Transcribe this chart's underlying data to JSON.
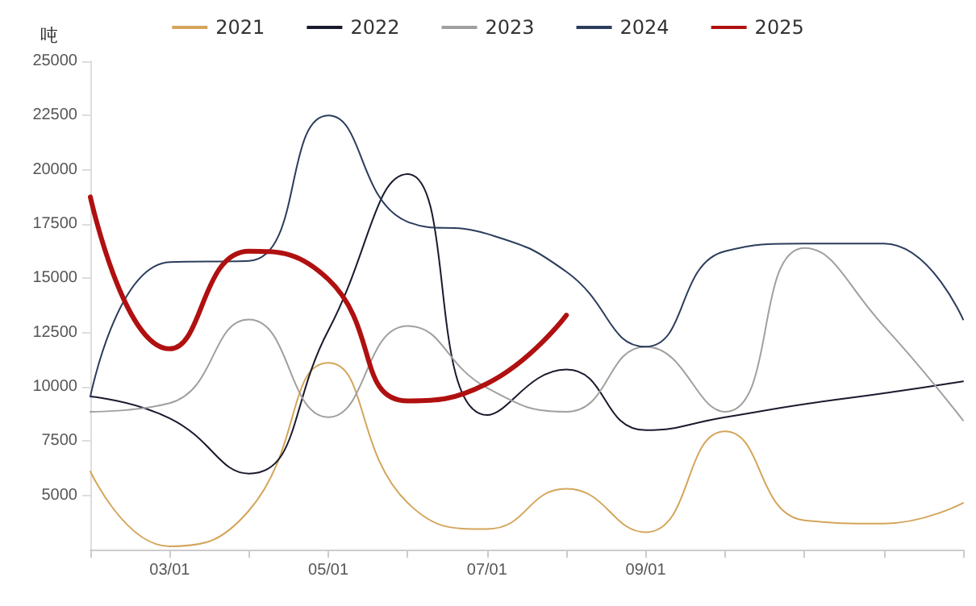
{
  "chart_data": {
    "type": "line",
    "ylabel": "吨",
    "categories": [
      null,
      "03/01",
      null,
      "05/01",
      null,
      "07/01",
      null,
      "09/01",
      null,
      null,
      null,
      null
    ],
    "series": [
      {
        "name": "2021",
        "color": "#d4a55a",
        "values": [
          6100,
          2650,
          4300,
          11100,
          4650,
          3450,
          5300,
          3300,
          7950,
          3850,
          3700,
          4650
        ]
      },
      {
        "name": "2022",
        "color": "#1a1a2e",
        "values": [
          9550,
          8550,
          6000,
          12600,
          19800,
          8700,
          10800,
          8000,
          8600,
          9200,
          9700,
          10250
        ]
      },
      {
        "name": "2023",
        "color": "#a0a0a0",
        "values": [
          8850,
          9250,
          13100,
          8600,
          12800,
          9950,
          8850,
          11850,
          8850,
          16400,
          12800,
          8450
        ]
      },
      {
        "name": "2024",
        "color": "#2b3d5c",
        "values": [
          9550,
          15750,
          15800,
          22500,
          17600,
          17050,
          15300,
          11850,
          16250,
          16600,
          16600,
          13100
        ]
      },
      {
        "name": "2025",
        "color": "#b01010",
        "values": [
          18750,
          11750,
          16250,
          14950,
          9350,
          10150,
          13300,
          null,
          null,
          null,
          null,
          null
        ]
      }
    ],
    "ylim": [
      2500,
      25000
    ],
    "yticks": [
      5000,
      7500,
      10000,
      12500,
      15000,
      17500,
      20000,
      22500,
      25000
    ],
    "grid": false,
    "legend": "top",
    "marker": "none",
    "line_style": "solid"
  }
}
